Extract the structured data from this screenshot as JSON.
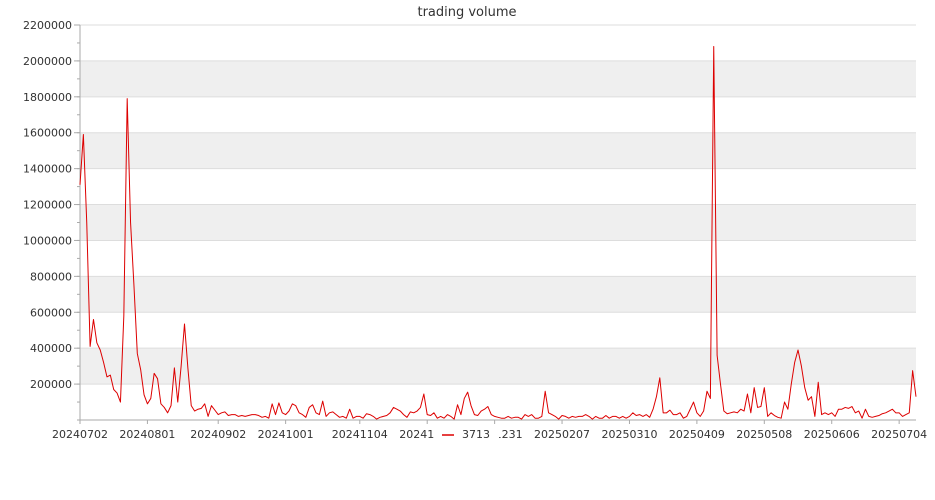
{
  "chart_data": {
    "type": "line",
    "title": "trading volume",
    "xlabel": "",
    "ylabel": "",
    "ylim": [
      0,
      2200000
    ],
    "y_ticks": [
      200000,
      400000,
      600000,
      800000,
      1000000,
      1200000,
      1400000,
      1600000,
      1800000,
      2000000,
      2200000
    ],
    "x_tick_labels": [
      {
        "index": 0,
        "label": "20240702"
      },
      {
        "index": 20,
        "label": "20240801"
      },
      {
        "index": 41,
        "label": "20240902"
      },
      {
        "index": 61,
        "label": "20241001"
      },
      {
        "index": 83,
        "label": "20241104"
      },
      {
        "index": 103,
        "label": "20241202"
      },
      {
        "index": 123,
        "label": "20241231"
      },
      {
        "index": 143,
        "label": "20250207"
      },
      {
        "index": 163,
        "label": "20250310"
      },
      {
        "index": 183,
        "label": "20250409"
      },
      {
        "index": 203,
        "label": "20250508"
      },
      {
        "index": 223,
        "label": "20250606"
      },
      {
        "index": 243,
        "label": "20250704"
      }
    ],
    "grid": "horizontal alternating bands",
    "legend": "bottom-center",
    "series": [
      {
        "name": "3713",
        "color": "#dd0000",
        "values": [
          1310000,
          1590000,
          1100000,
          410000,
          560000,
          430000,
          390000,
          320000,
          240000,
          250000,
          170000,
          150000,
          100000,
          580000,
          1790000,
          1100000,
          750000,
          370000,
          280000,
          140000,
          90000,
          120000,
          260000,
          230000,
          90000,
          70000,
          40000,
          80000,
          290000,
          100000,
          300000,
          535000,
          290000,
          80000,
          50000,
          60000,
          65000,
          90000,
          20000,
          80000,
          55000,
          30000,
          40000,
          45000,
          25000,
          30000,
          30000,
          20000,
          25000,
          20000,
          25000,
          30000,
          30000,
          25000,
          15000,
          20000,
          10000,
          90000,
          30000,
          95000,
          40000,
          30000,
          50000,
          90000,
          80000,
          40000,
          30000,
          15000,
          70000,
          85000,
          40000,
          30000,
          105000,
          20000,
          40000,
          45000,
          30000,
          15000,
          20000,
          10000,
          60000,
          10000,
          20000,
          20000,
          10000,
          35000,
          30000,
          20000,
          5000,
          15000,
          20000,
          25000,
          40000,
          70000,
          60000,
          50000,
          30000,
          15000,
          45000,
          40000,
          50000,
          70000,
          145000,
          30000,
          25000,
          40000,
          10000,
          20000,
          10000,
          30000,
          20000,
          5000,
          85000,
          30000,
          120000,
          155000,
          80000,
          30000,
          25000,
          50000,
          60000,
          75000,
          30000,
          20000,
          15000,
          10000,
          10000,
          20000,
          10000,
          15000,
          15000,
          5000,
          30000,
          20000,
          30000,
          10000,
          10000,
          20000,
          160000,
          40000,
          30000,
          20000,
          5000,
          25000,
          20000,
          10000,
          20000,
          15000,
          20000,
          20000,
          30000,
          20000,
          5000,
          20000,
          10000,
          10000,
          25000,
          10000,
          20000,
          20000,
          10000,
          20000,
          10000,
          20000,
          40000,
          25000,
          30000,
          20000,
          30000,
          15000,
          60000,
          130000,
          235000,
          40000,
          40000,
          55000,
          30000,
          30000,
          40000,
          10000,
          20000,
          60000,
          100000,
          40000,
          20000,
          50000,
          160000,
          120000,
          2080000,
          360000,
          200000,
          50000,
          35000,
          40000,
          45000,
          40000,
          60000,
          50000,
          145000,
          40000,
          180000,
          70000,
          75000,
          180000,
          20000,
          40000,
          25000,
          15000,
          10000,
          100000,
          60000,
          200000,
          320000,
          390000,
          300000,
          180000,
          110000,
          130000,
          20000,
          210000,
          30000,
          40000,
          30000,
          40000,
          20000,
          60000,
          60000,
          70000,
          65000,
          75000,
          40000,
          50000,
          10000,
          60000,
          20000,
          15000,
          20000,
          25000,
          35000,
          40000,
          50000,
          60000,
          40000,
          40000,
          20000,
          30000,
          40000,
          275000,
          130000
        ]
      }
    ]
  }
}
